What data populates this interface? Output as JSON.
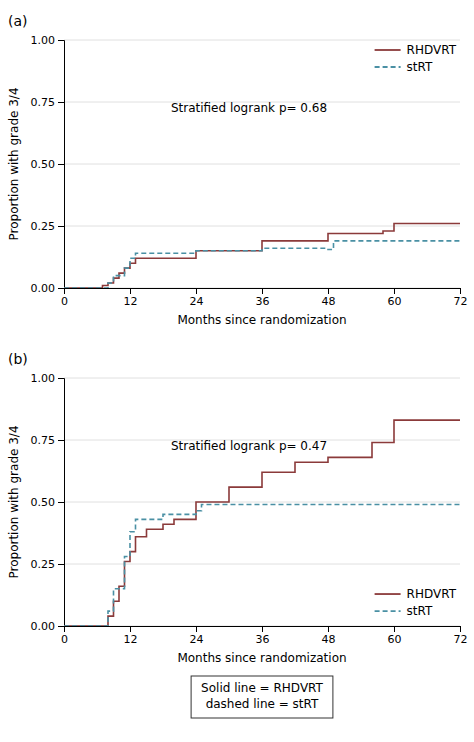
{
  "chart_data": [
    {
      "type": "step",
      "title": "(a)",
      "annotations": [
        "Stratified logrank p= 0.68"
      ],
      "xlabel": "Months since randomization",
      "ylabel": "Proportion with grade 3/4",
      "series": [
        {
          "name": "RHDVRT",
          "color": "#8B3A3A",
          "line_style": "solid",
          "x": [
            0,
            7,
            8,
            9,
            10,
            11,
            12,
            13,
            24,
            36,
            48,
            58,
            60,
            72
          ],
          "values": [
            0.0,
            0.01,
            0.02,
            0.04,
            0.06,
            0.08,
            0.1,
            0.12,
            0.15,
            0.19,
            0.22,
            0.23,
            0.26,
            0.26
          ]
        },
        {
          "name": "stRT",
          "color": "#4A90A4",
          "line_style": "dashed",
          "x": [
            0,
            8,
            9,
            11,
            12,
            13,
            24,
            36,
            48,
            49,
            72
          ],
          "values": [
            0.0,
            0.02,
            0.05,
            0.08,
            0.12,
            0.14,
            0.15,
            0.16,
            0.155,
            0.19,
            0.19
          ]
        }
      ],
      "xlim": [
        0,
        72
      ],
      "xticks": [
        0,
        12,
        24,
        36,
        48,
        60,
        72
      ],
      "ylim": [
        0,
        1.0
      ],
      "yticks": [
        {
          "value": 0.0,
          "label": "0.00"
        },
        0.25,
        {
          "value": 0.5,
          "label": "0.50"
        },
        0.75,
        {
          "value": 1.0,
          "label": "1.00"
        }
      ],
      "grid": "y",
      "legend": "upper right"
    },
    {
      "type": "step",
      "title": "(b)",
      "annotations": [
        "Stratified logrank p= 0.47"
      ],
      "xlabel": "Months since randomization",
      "ylabel": "Proportion with grade 3/4",
      "series": [
        {
          "name": "RHDVRT",
          "color": "#8B3A3A",
          "line_style": "solid",
          "x": [
            0,
            8,
            9,
            10,
            11,
            12,
            13,
            15,
            18,
            20,
            24,
            30,
            36,
            42,
            48,
            56,
            60,
            72
          ],
          "values": [
            0.0,
            0.04,
            0.1,
            0.16,
            0.26,
            0.3,
            0.36,
            0.39,
            0.41,
            0.43,
            0.5,
            0.56,
            0.62,
            0.66,
            0.68,
            0.74,
            0.83,
            0.83
          ]
        },
        {
          "name": "stRT",
          "color": "#4A90A4",
          "line_style": "dashed",
          "x": [
            0,
            8,
            9,
            11,
            12,
            13,
            18,
            24,
            25,
            72
          ],
          "values": [
            0.0,
            0.06,
            0.15,
            0.28,
            0.38,
            0.43,
            0.45,
            0.465,
            0.49,
            0.49
          ]
        }
      ],
      "xlim": [
        0,
        72
      ],
      "xticks": [
        0,
        12,
        24,
        36,
        48,
        60,
        72
      ],
      "ylim": [
        0,
        1.0
      ],
      "yticks": [
        {
          "value": 0.0,
          "label": "0.00"
        },
        0.25,
        {
          "value": 0.5,
          "label": "0.50"
        },
        0.75,
        {
          "value": 1.0,
          "label": "1.00"
        }
      ],
      "grid": "y",
      "legend": "lower right",
      "caption": [
        "Solid line = RHDVRT",
        "dashed line = stRT"
      ]
    }
  ]
}
